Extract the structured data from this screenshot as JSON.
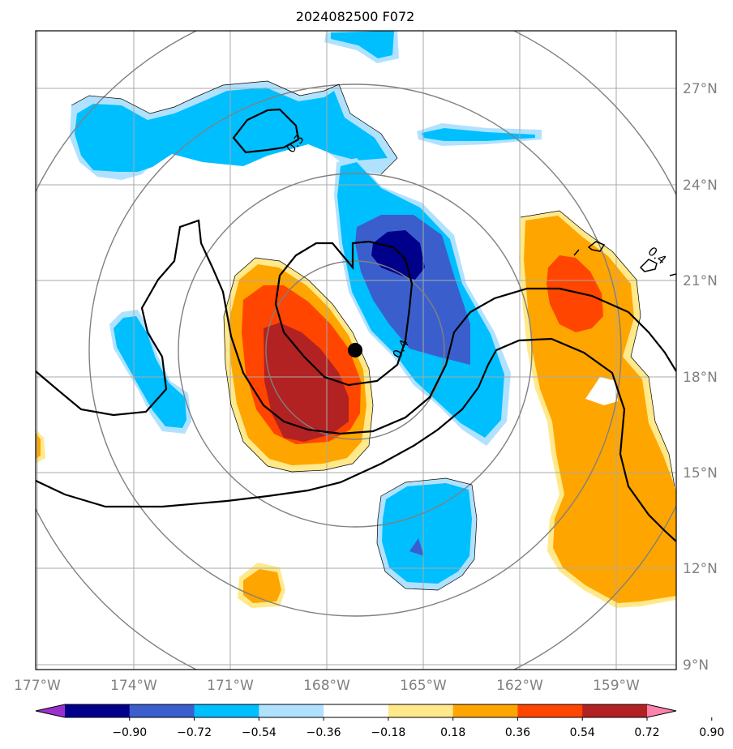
{
  "title": "2024082500 F072",
  "lat_labels": [
    "27°N",
    "24°N",
    "21°N",
    "18°N",
    "15°N",
    "12°N",
    "9°N"
  ],
  "lon_labels": [
    "177°W",
    "174°W",
    "171°W",
    "168°W",
    "165°W",
    "162°W",
    "159°W"
  ],
  "colorbar": {
    "ticks": [
      "−0.90",
      "−0.72",
      "−0.54",
      "−0.36",
      "−0.18",
      "0.18",
      "0.36",
      "0.54",
      "0.72",
      "0.90"
    ],
    "colors": [
      "#9932cc",
      "#00008b",
      "#3a5fcd",
      "#00bfff",
      "#b0e2ff",
      "#ffffff",
      "#ffe98a",
      "#ffa500",
      "#ff4500",
      "#b22222",
      "#ff82ab"
    ]
  },
  "contour_labels": [
    "0.3",
    "0.4",
    "0.4"
  ],
  "storm_center": {
    "lat": 18.8,
    "lon": -167.1
  }
}
